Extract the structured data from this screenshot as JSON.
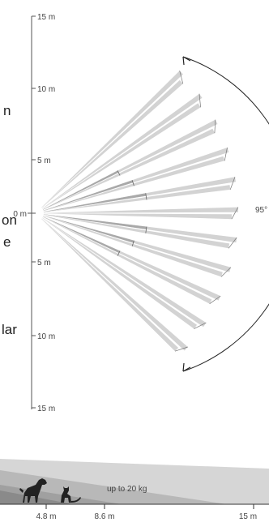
{
  "top_view": {
    "scale_labels": [
      "15 m",
      "10 m",
      "5 m",
      "0 m",
      "5 m",
      "10 m",
      "15 m"
    ],
    "angle_label": "95°",
    "cropped_side_text": [
      "n",
      "on",
      "e",
      "lar"
    ],
    "colors": {
      "beam_light": "#d3d3d3",
      "beam_dark": "#a9a9a9",
      "axis": "#555555"
    }
  },
  "side_view": {
    "label": "up to 20 kg",
    "distance_labels": [
      "4.8 m",
      "8.6 m",
      "15 m"
    ],
    "icons": [
      "dog-icon",
      "cat-icon"
    ],
    "colors": {
      "zone_dark": "#8a8a8a",
      "zone_mid": "#b5b5b5",
      "zone_light": "#d6d6d6"
    }
  }
}
